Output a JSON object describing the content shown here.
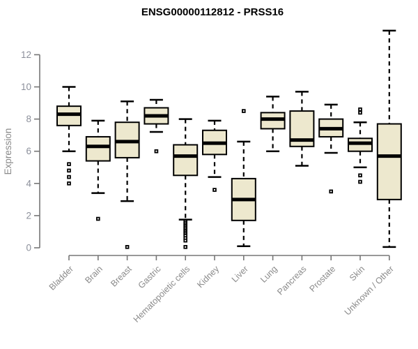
{
  "chart_data": {
    "type": "boxplot",
    "title": "ENSG00000112812 - PRSS16",
    "ylabel": "Expression",
    "xlabel": "",
    "ylim": [
      0,
      13.6
    ],
    "yticks": [
      0,
      2,
      4,
      6,
      8,
      10,
      12
    ],
    "grid": false,
    "legend": "none",
    "categories": [
      "Bladder",
      "Brain",
      "Breast",
      "Gastric",
      "Hematopoietic cells",
      "Kidney",
      "Liver",
      "Lung",
      "Pancreas",
      "Prostate",
      "Skin",
      "Unknown / Other"
    ],
    "series": [
      {
        "category": "Bladder",
        "whisker_low": 6.0,
        "q1": 7.6,
        "median": 8.3,
        "q3": 8.8,
        "whisker_high": 10.0,
        "outliers": [
          5.2,
          4.8,
          4.4,
          4.0
        ]
      },
      {
        "category": "Brain",
        "whisker_low": 3.4,
        "q1": 5.4,
        "median": 6.3,
        "q3": 6.9,
        "whisker_high": 7.9,
        "outliers": [
          1.8
        ]
      },
      {
        "category": "Breast",
        "whisker_low": 2.9,
        "q1": 5.6,
        "median": 6.6,
        "q3": 7.8,
        "whisker_high": 9.1,
        "outliers": [
          0.05
        ]
      },
      {
        "category": "Gastric",
        "whisker_low": 7.2,
        "q1": 7.7,
        "median": 8.2,
        "q3": 8.7,
        "whisker_high": 9.2,
        "outliers": [
          6.0
        ]
      },
      {
        "category": "Hematopoietic cells",
        "whisker_low": 1.75,
        "q1": 4.5,
        "median": 5.7,
        "q3": 6.4,
        "whisker_high": 8.0,
        "outliers": [
          1.65,
          1.55,
          1.45,
          1.35,
          1.25,
          1.15,
          1.05,
          0.95,
          0.85,
          0.75,
          0.6,
          0.45,
          0.05
        ]
      },
      {
        "category": "Kidney",
        "whisker_low": 4.4,
        "q1": 5.8,
        "median": 6.5,
        "q3": 7.3,
        "whisker_high": 7.9,
        "outliers": [
          3.6
        ]
      },
      {
        "category": "Liver",
        "whisker_low": 0.1,
        "q1": 1.7,
        "median": 3.0,
        "q3": 4.3,
        "whisker_high": 6.6,
        "outliers": [
          8.5
        ]
      },
      {
        "category": "Lung",
        "whisker_low": 6.0,
        "q1": 7.4,
        "median": 8.0,
        "q3": 8.4,
        "whisker_high": 9.4,
        "outliers": []
      },
      {
        "category": "Pancreas",
        "whisker_low": 5.1,
        "q1": 6.3,
        "median": 6.7,
        "q3": 8.5,
        "whisker_high": 9.7,
        "outliers": []
      },
      {
        "category": "Prostate",
        "whisker_low": 5.9,
        "q1": 6.9,
        "median": 7.4,
        "q3": 8.0,
        "whisker_high": 8.9,
        "outliers": [
          3.5
        ]
      },
      {
        "category": "Skin",
        "whisker_low": 5.0,
        "q1": 6.0,
        "median": 6.5,
        "q3": 6.8,
        "whisker_high": 7.8,
        "outliers": [
          8.6,
          8.4,
          4.5,
          4.1
        ]
      },
      {
        "category": "Unknown / Other",
        "whisker_low": 0.05,
        "q1": 3.0,
        "median": 5.7,
        "q3": 7.7,
        "whisker_high": 13.5,
        "outliers": []
      }
    ],
    "colors": {
      "box_fill": "#EDE8CE",
      "box_border": "#000000",
      "median": "#000000",
      "whisker": "#000000",
      "outlier": "#000000",
      "axis": "#767676",
      "tick_label": "#8B8F9A",
      "category_label": "#8A8A8A",
      "axis_label": "#8A8A8A",
      "title": "#000000",
      "background": "#FFFFFF"
    }
  }
}
